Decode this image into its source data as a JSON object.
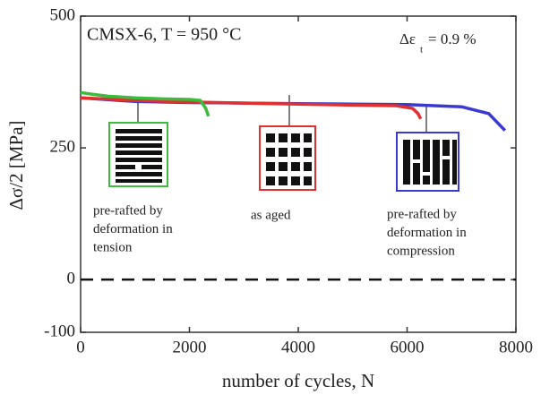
{
  "chart_data": {
    "type": "line",
    "title": "CMSX-6, T = 950 °C",
    "strain_symbol": "Δε",
    "strain_subscript": "t",
    "strain_value": "= 0.9 %",
    "xlabel": "number of cycles, N",
    "ylabel": "Δσ/2 [MPa]",
    "xlim": [
      0,
      8000
    ],
    "xticks": [
      0,
      2000,
      4000,
      6000,
      8000
    ],
    "ylim": [
      -100,
      500
    ],
    "yticks": [
      -100,
      0,
      250,
      500
    ],
    "reference_line": 0,
    "series": [
      {
        "name": "pre-rafted by deformation in tension",
        "color": "#3dbb3d",
        "x": [
          0,
          200,
          500,
          1000,
          1500,
          2000,
          2200,
          2300,
          2350
        ],
        "values": [
          355,
          352,
          348,
          345,
          343,
          342,
          340,
          325,
          310
        ]
      },
      {
        "name": "as aged",
        "color": "#e03030",
        "x": [
          0,
          1000,
          2000,
          3000,
          4000,
          5000,
          5800,
          6100,
          6200,
          6250
        ],
        "values": [
          345,
          340,
          337,
          335,
          333,
          331,
          330,
          325,
          315,
          305
        ]
      },
      {
        "name": "pre-rafted by deformation in compression",
        "color": "#3a3ad0",
        "x": [
          0,
          1000,
          2000,
          3000,
          4000,
          5000,
          6000,
          7000,
          7500,
          7800
        ],
        "values": [
          345,
          338,
          336,
          335,
          334,
          333,
          332,
          328,
          315,
          283
        ]
      }
    ],
    "annotations": [
      {
        "lines": [
          "pre-rafted by",
          "deformation in",
          "tension"
        ]
      },
      {
        "lines": [
          "as aged"
        ]
      },
      {
        "lines": [
          "pre-rafted by",
          "deformation in",
          "compression"
        ]
      }
    ]
  }
}
